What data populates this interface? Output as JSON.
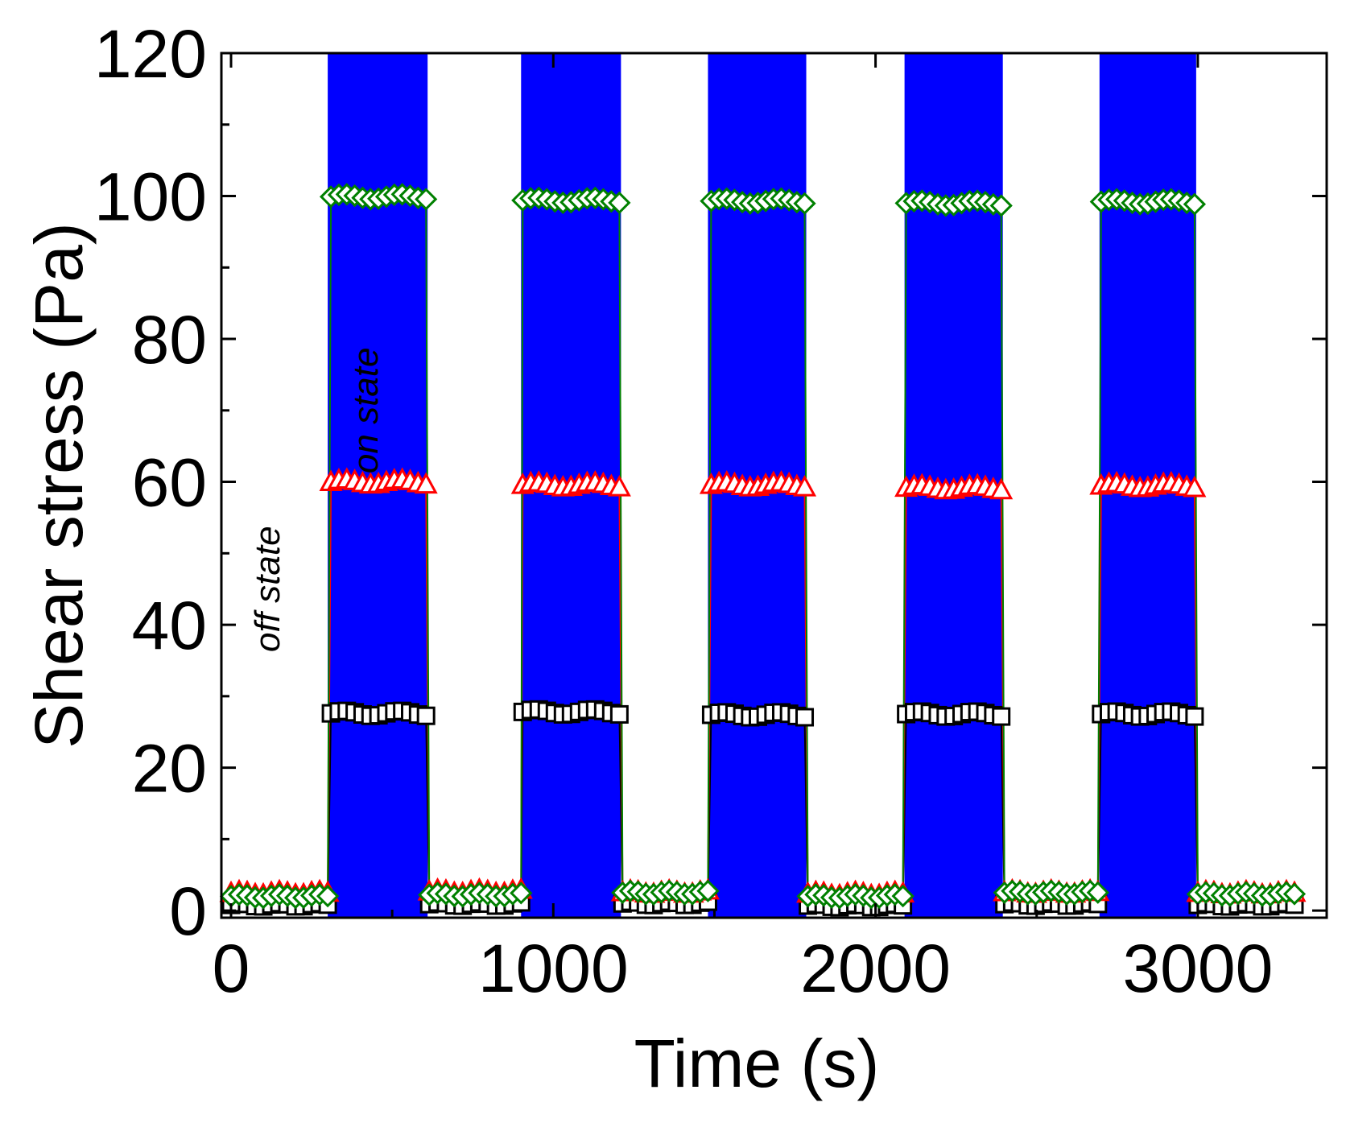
{
  "chart_data": {
    "type": "scatter",
    "xlabel": "Time (s)",
    "ylabel": "Shear stress (Pa)",
    "xlim": [
      -30,
      3400
    ],
    "ylim": [
      -1,
      120
    ],
    "x_ticks": [
      0,
      1000,
      2000,
      3000
    ],
    "y_ticks": [
      0,
      20,
      40,
      60,
      80,
      100,
      120
    ],
    "x_tick_labels": [
      "0",
      "1000",
      "2000",
      "3000"
    ],
    "y_tick_labels": [
      "0",
      "20",
      "40",
      "60",
      "80",
      "100",
      "120"
    ],
    "grid": false,
    "legend": "none",
    "on_state_intervals": [
      [
        300,
        610
      ],
      [
        900,
        1210
      ],
      [
        1480,
        1785
      ],
      [
        2090,
        2395
      ],
      [
        2695,
        2995
      ]
    ],
    "on_state_color": "#0000ff",
    "annotations": [
      {
        "text": "off state",
        "x": 150,
        "y": 45,
        "rotation": -90
      },
      {
        "text": "on state",
        "x": 455,
        "y": 70,
        "rotation": -90
      }
    ],
    "series": [
      {
        "marker": "square",
        "color": "#000000",
        "off_level": 0.8,
        "on_level": 27.6
      },
      {
        "marker": "triangle",
        "color": "#ff0000",
        "off_level": 2.5,
        "on_level": 59.7
      },
      {
        "marker": "diamond",
        "color": "#008000",
        "off_level": 2.0,
        "on_level": 99.4
      }
    ],
    "segments": [
      {
        "state": "off",
        "start": 0,
        "end": 300
      },
      {
        "state": "on",
        "start": 310,
        "end": 605
      },
      {
        "state": "off",
        "start": 615,
        "end": 900
      },
      {
        "state": "on",
        "start": 905,
        "end": 1205
      },
      {
        "state": "off",
        "start": 1215,
        "end": 1480
      },
      {
        "state": "on",
        "start": 1490,
        "end": 1780
      },
      {
        "state": "off",
        "start": 1790,
        "end": 2085
      },
      {
        "state": "on",
        "start": 2095,
        "end": 2390
      },
      {
        "state": "off",
        "start": 2400,
        "end": 2690
      },
      {
        "state": "on",
        "start": 2700,
        "end": 2990
      },
      {
        "state": "off",
        "start": 3000,
        "end": 3300
      }
    ],
    "on_levels_by_cycle": {
      "square": [
        27.6,
        27.8,
        27.4,
        27.5,
        27.5
      ],
      "triangle": [
        60.0,
        59.6,
        59.6,
        59.2,
        59.5
      ],
      "diamond": [
        99.9,
        99.4,
        99.3,
        99.0,
        99.2
      ]
    },
    "off_levels_by_cycle": {
      "square": [
        0.8,
        0.9,
        1.0,
        0.7,
        0.9,
        0.8
      ],
      "triangle": [
        2.5,
        2.7,
        2.6,
        2.4,
        2.6,
        2.5
      ],
      "diamond": [
        2.0,
        2.2,
        2.5,
        2.0,
        2.5,
        2.3
      ]
    }
  }
}
